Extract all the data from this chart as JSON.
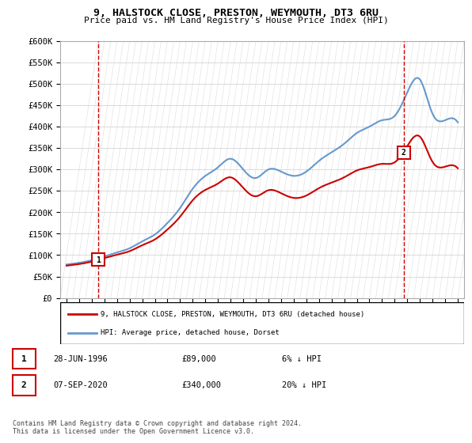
{
  "title_line1": "9, HALSTOCK CLOSE, PRESTON, WEYMOUTH, DT3 6RU",
  "title_line2": "Price paid vs. HM Land Registry's House Price Index (HPI)",
  "ylabel_ticks": [
    "£0",
    "£50K",
    "£100K",
    "£150K",
    "£200K",
    "£250K",
    "£300K",
    "£350K",
    "£400K",
    "£450K",
    "£500K",
    "£550K",
    "£600K"
  ],
  "ytick_values": [
    0,
    50000,
    100000,
    150000,
    200000,
    250000,
    300000,
    350000,
    400000,
    450000,
    500000,
    550000,
    600000
  ],
  "xlim_start": 1993.5,
  "xlim_end": 2025.5,
  "ylim_min": 0,
  "ylim_max": 600000,
  "hpi_color": "#6699cc",
  "price_color": "#cc0000",
  "vline_color": "#cc0000",
  "vline_style": "--",
  "transaction1_year": 1996.5,
  "transaction1_value": 89000,
  "transaction1_label": "1",
  "transaction2_year": 2020.7,
  "transaction2_value": 340000,
  "transaction2_label": "2",
  "legend_label1": "9, HALSTOCK CLOSE, PRESTON, WEYMOUTH, DT3 6RU (detached house)",
  "legend_label2": "HPI: Average price, detached house, Dorset",
  "table_row1": [
    "1",
    "28-JUN-1996",
    "£89,000",
    "6% ↓ HPI"
  ],
  "table_row2": [
    "2",
    "07-SEP-2020",
    "£340,000",
    "20% ↓ HPI"
  ],
  "footnote": "Contains HM Land Registry data © Crown copyright and database right 2024.\nThis data is licensed under the Open Government Licence v3.0.",
  "background_hatching_color": "#e8e8e8",
  "grid_color": "#cccccc",
  "hpi_years": [
    1994,
    1995,
    1996,
    1997,
    1998,
    1999,
    2000,
    2001,
    2002,
    2003,
    2004,
    2005,
    2006,
    2007,
    2008,
    2009,
    2010,
    2011,
    2012,
    2013,
    2014,
    2015,
    2016,
    2017,
    2018,
    2019,
    2020,
    2021,
    2022,
    2023,
    2024,
    2025
  ],
  "hpi_values": [
    78000,
    82000,
    88000,
    97000,
    106000,
    116000,
    132000,
    148000,
    175000,
    210000,
    255000,
    285000,
    305000,
    325000,
    300000,
    280000,
    300000,
    295000,
    285000,
    295000,
    320000,
    340000,
    360000,
    385000,
    400000,
    415000,
    425000,
    480000,
    510000,
    430000,
    415000,
    410000
  ],
  "price_paid_years": [
    1996.5,
    2020.7
  ],
  "price_paid_values": [
    89000,
    340000
  ]
}
